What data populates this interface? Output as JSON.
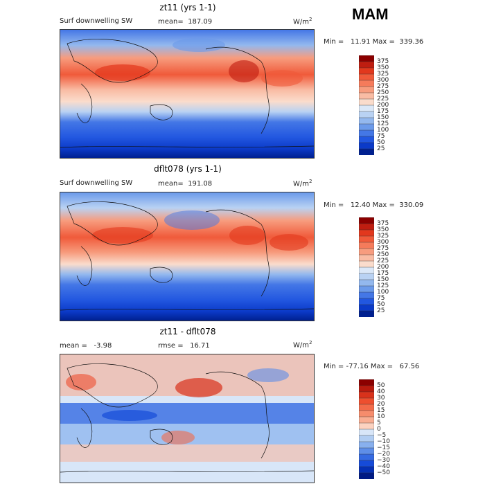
{
  "season": "MAM",
  "panels": [
    {
      "title": "zt11 (yrs 1-1)",
      "variable": "Surf downwelling SW",
      "stat1": "mean=  187.09",
      "stat2": "",
      "units": "W/m",
      "units_sup": "2",
      "minmax": "Min =   11.91 Max =  339.36",
      "levels": [
        "375",
        "350",
        "325",
        "300",
        "275",
        "250",
        "225",
        "200",
        "175",
        "150",
        "125",
        "100",
        "75",
        "50",
        "25"
      ],
      "colors": [
        "#8b0000",
        "#bf1d10",
        "#e2381d",
        "#f05a3a",
        "#f57b5b",
        "#f79c7e",
        "#f9bca4",
        "#fadccc",
        "#dbe8f8",
        "#b9d2f3",
        "#93b8ee",
        "#6b9aea",
        "#4477e6",
        "#2257e0",
        "#0b3ac8",
        "#002090"
      ]
    },
    {
      "title": "dflt078 (yrs 1-1)",
      "variable": "Surf downwelling SW",
      "stat1": "mean=  191.08",
      "stat2": "",
      "units": "W/m",
      "units_sup": "2",
      "minmax": "Min =   12.40 Max =  330.09",
      "levels": [
        "375",
        "350",
        "325",
        "300",
        "275",
        "250",
        "225",
        "200",
        "175",
        "150",
        "125",
        "100",
        "75",
        "50",
        "25"
      ],
      "colors": [
        "#8b0000",
        "#bf1d10",
        "#e2381d",
        "#f05a3a",
        "#f57b5b",
        "#f79c7e",
        "#f9bca4",
        "#fadccc",
        "#dbe8f8",
        "#b9d2f3",
        "#93b8ee",
        "#6b9aea",
        "#4477e6",
        "#2257e0",
        "#0b3ac8",
        "#002090"
      ]
    },
    {
      "title": "zt11 - dflt078",
      "variable": "",
      "stat1": "mean =   -3.98",
      "stat2": "rmse =   16.71",
      "units": "W/m",
      "units_sup": "2",
      "minmax": "Min = -77.16 Max =   67.56",
      "levels": [
        "50",
        "40",
        "30",
        "20",
        "15",
        "10",
        "5",
        "0",
        "−5",
        "−10",
        "−15",
        "−20",
        "−30",
        "−40",
        "−50"
      ],
      "colors": [
        "#8b0000",
        "#b81a0e",
        "#d9321b",
        "#ee4f2f",
        "#f36b4a",
        "#f68c6c",
        "#f9ad92",
        "#fcd2c0",
        "#d8e6f8",
        "#b1cdf2",
        "#88b0ee",
        "#5e8ee8",
        "#356ae2",
        "#164bd8",
        "#0530b4",
        "#001a84"
      ]
    }
  ]
}
